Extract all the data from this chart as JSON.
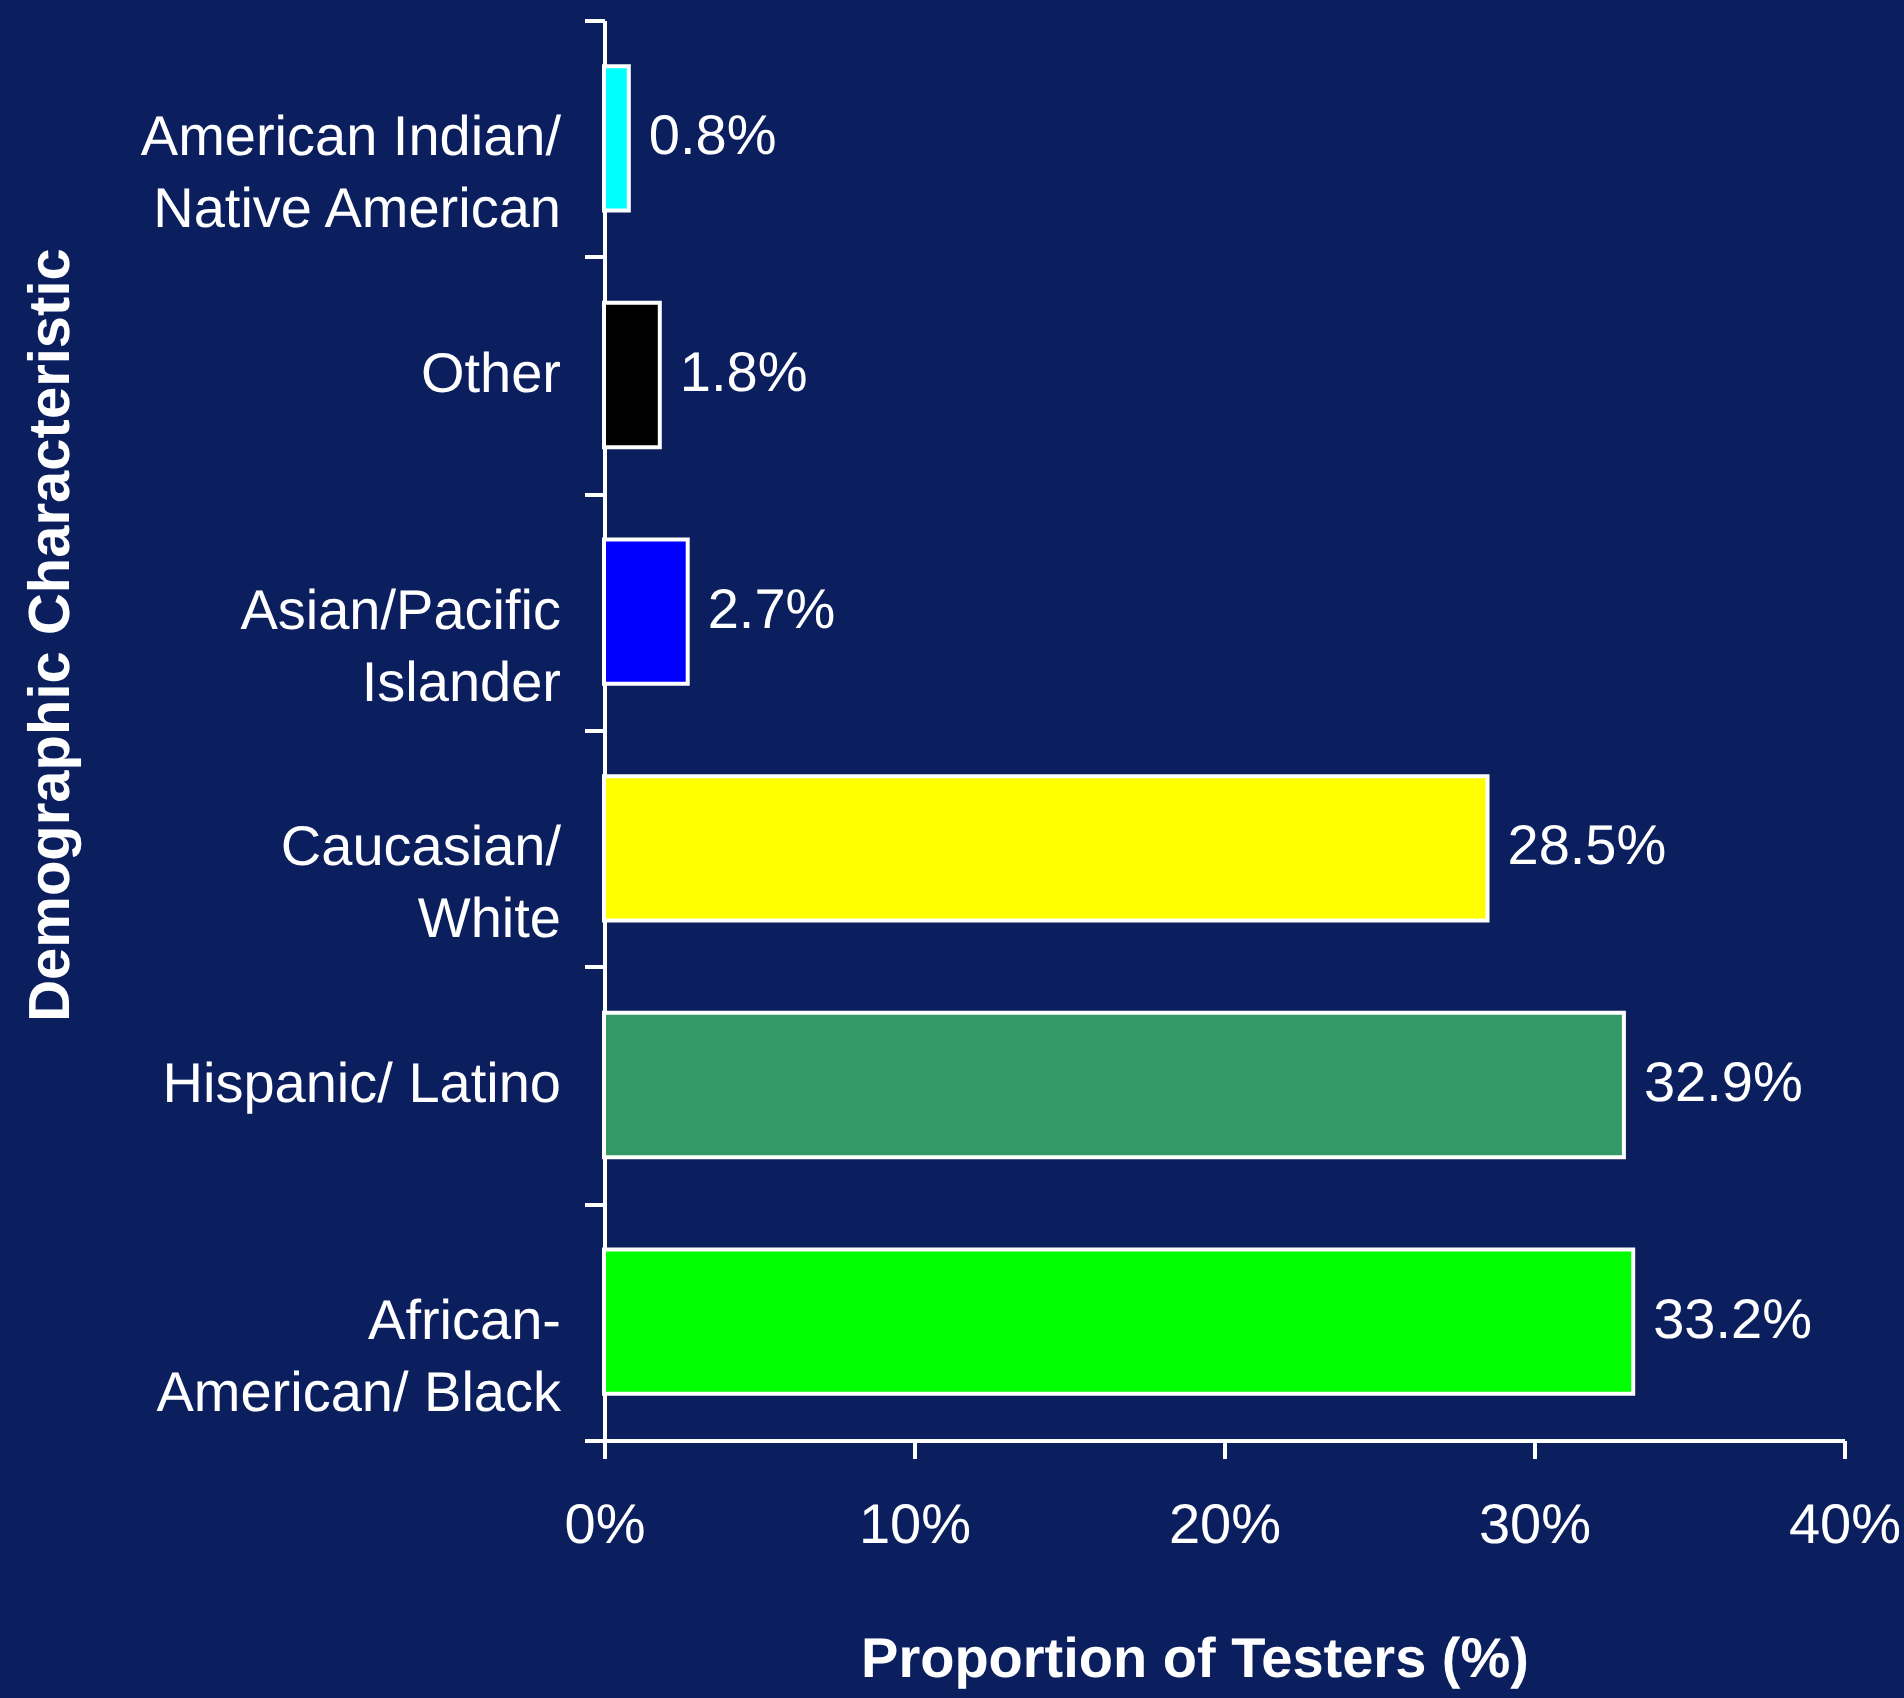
{
  "chart_data": {
    "type": "bar",
    "orientation": "horizontal",
    "xlabel": "Proportion of Testers (%)",
    "ylabel": "Demographic Characteristic",
    "categories": [
      "American Indian/\nNative American",
      "Other",
      "Asian/Pacific\nIslander",
      "Caucasian/\nWhite",
      "Hispanic/ Latino",
      "African-\nAmerican/ Black"
    ],
    "values": [
      0.8,
      1.8,
      2.7,
      28.5,
      32.9,
      33.2
    ],
    "value_labels": [
      "0.8%",
      "1.8%",
      "2.7%",
      "28.5%",
      "32.9%",
      "33.2%"
    ],
    "colors": [
      "#00ffff",
      "#000000",
      "#0000ff",
      "#ffff00",
      "#339966",
      "#00ff00"
    ],
    "xlim": [
      0,
      40
    ],
    "xticks": [
      {
        "value": 0,
        "label": "0%"
      },
      {
        "value": 10,
        "label": "10%"
      },
      {
        "value": 20,
        "label": "20%"
      },
      {
        "value": 30,
        "label": "30%"
      },
      {
        "value": 40,
        "label": "40%"
      }
    ],
    "grid": false
  }
}
